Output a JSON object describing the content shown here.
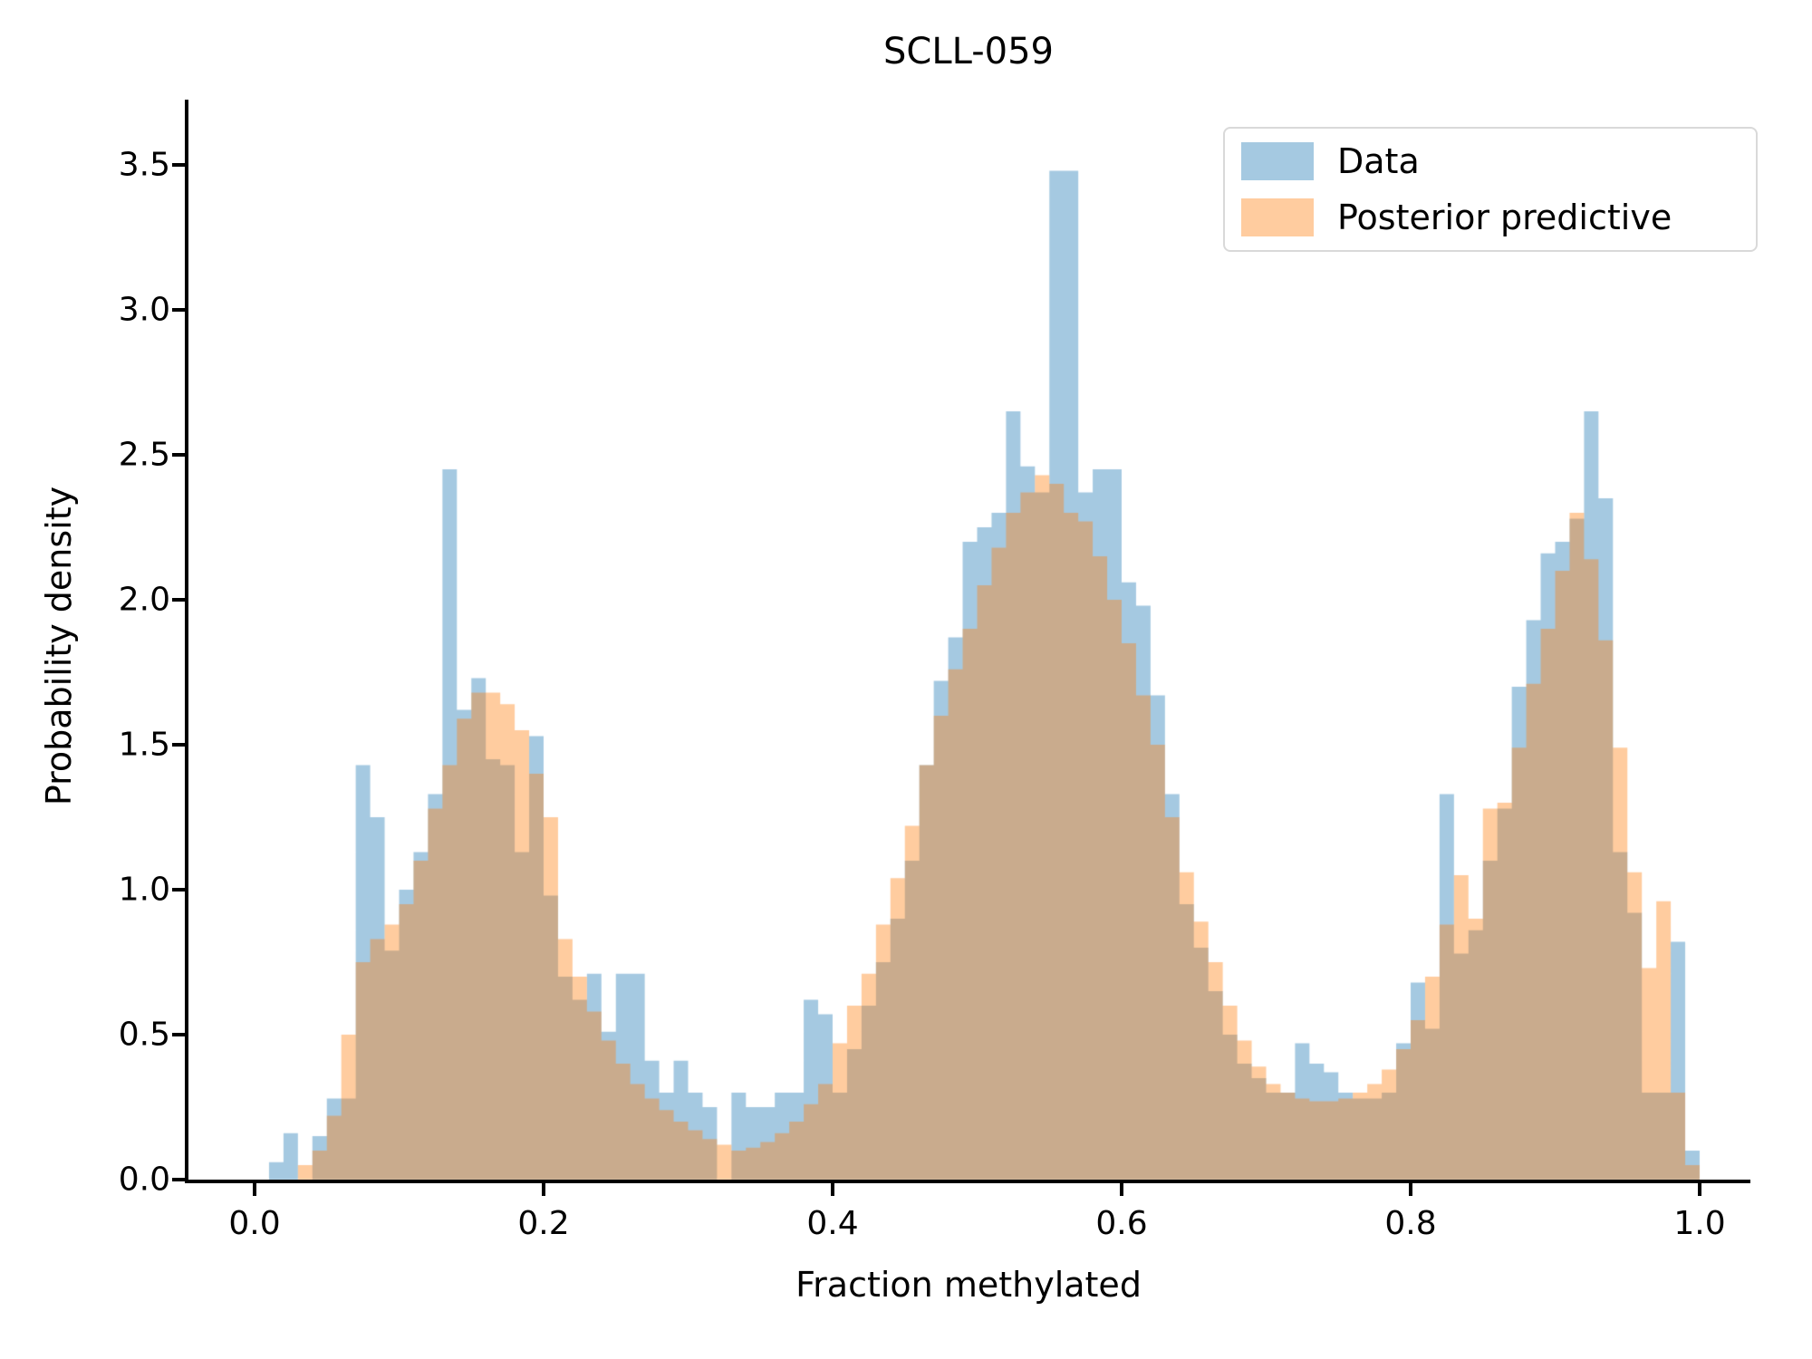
{
  "figure": {
    "title": "SCLL-059",
    "xlabel": "Fraction methylated",
    "ylabel": "Probability density"
  },
  "legend": {
    "position": "upper right",
    "items": [
      {
        "label": "Data",
        "swatch_color": "#a5c9e1"
      },
      {
        "label": "Posterior predictive",
        "swatch_color": "#ffcc9f"
      }
    ]
  },
  "chart_data": {
    "type": "bar",
    "subtype": "overlapping-histograms",
    "title": "SCLL-059",
    "xlabel": "Fraction methylated",
    "ylabel": "Probability density",
    "grid": false,
    "legend_position": "upper right",
    "xlim": [
      -0.046,
      1.034
    ],
    "ylim": [
      0,
      3.72
    ],
    "xticks": [
      {
        "v": 0.0,
        "label": "0.0"
      },
      {
        "v": 0.2,
        "label": "0.2"
      },
      {
        "v": 0.4,
        "label": "0.4"
      },
      {
        "v": 0.6,
        "label": "0.6"
      },
      {
        "v": 0.8,
        "label": "0.8"
      },
      {
        "v": 1.0,
        "label": "1.0"
      }
    ],
    "yticks": [
      {
        "v": 0.0,
        "label": "0.0"
      },
      {
        "v": 0.5,
        "label": "0.5"
      },
      {
        "v": 1.0,
        "label": "1.0"
      },
      {
        "v": 1.5,
        "label": "1.5"
      },
      {
        "v": 2.0,
        "label": "2.0"
      },
      {
        "v": 2.5,
        "label": "2.5"
      },
      {
        "v": 3.0,
        "label": "3.0"
      },
      {
        "v": 3.5,
        "label": "3.5"
      }
    ],
    "bins": {
      "start": 0.0,
      "width": 0.01,
      "count": 100
    },
    "series": [
      {
        "name": "Data",
        "color": "#1f77b4",
        "alpha": 0.4,
        "values": [
          0,
          0.06,
          0.16,
          0,
          0.15,
          0.28,
          0.28,
          1.43,
          1.25,
          0.79,
          1.0,
          1.13,
          1.33,
          2.45,
          1.62,
          1.73,
          1.45,
          1.43,
          1.13,
          1.53,
          0.98,
          0.7,
          0.62,
          0.71,
          0.51,
          0.71,
          0.71,
          0.41,
          0.3,
          0.41,
          0.3,
          0.25,
          0.0,
          0.3,
          0.25,
          0.25,
          0.3,
          0.3,
          0.62,
          0.57,
          0.3,
          0.45,
          0.6,
          0.75,
          0.9,
          1.1,
          1.43,
          1.72,
          1.87,
          2.2,
          2.25,
          2.3,
          2.65,
          2.46,
          2.37,
          3.48,
          3.48,
          2.37,
          2.45,
          2.45,
          2.06,
          1.98,
          1.67,
          1.33,
          0.95,
          0.8,
          0.65,
          0.5,
          0.4,
          0.35,
          0.3,
          0.3,
          0.47,
          0.4,
          0.37,
          0.3,
          0.28,
          0.28,
          0.3,
          0.47,
          0.68,
          0.52,
          1.33,
          0.78,
          0.86,
          1.1,
          1.28,
          1.7,
          1.93,
          2.16,
          2.2,
          2.28,
          2.65,
          2.35,
          1.13,
          0.92,
          0.3,
          0.3,
          0.82,
          0.1
        ]
      },
      {
        "name": "Posterior predictive",
        "color": "#ff7f0e",
        "alpha": 0.4,
        "values": [
          0,
          0,
          0,
          0.05,
          0.1,
          0.22,
          0.5,
          0.75,
          0.83,
          0.88,
          0.95,
          1.1,
          1.28,
          1.43,
          1.59,
          1.68,
          1.68,
          1.64,
          1.55,
          1.4,
          1.25,
          0.83,
          0.7,
          0.58,
          0.48,
          0.4,
          0.33,
          0.28,
          0.24,
          0.2,
          0.17,
          0.14,
          0.12,
          0.1,
          0.11,
          0.13,
          0.16,
          0.2,
          0.26,
          0.33,
          0.47,
          0.6,
          0.71,
          0.88,
          1.04,
          1.22,
          1.43,
          1.6,
          1.76,
          1.9,
          2.05,
          2.18,
          2.3,
          2.37,
          2.43,
          2.4,
          2.3,
          2.27,
          2.15,
          2.0,
          1.85,
          1.67,
          1.5,
          1.25,
          1.06,
          0.89,
          0.75,
          0.6,
          0.48,
          0.39,
          0.33,
          0.3,
          0.28,
          0.27,
          0.27,
          0.28,
          0.3,
          0.33,
          0.38,
          0.45,
          0.55,
          0.7,
          0.88,
          1.05,
          0.9,
          1.28,
          1.3,
          1.49,
          1.71,
          1.9,
          2.1,
          2.3,
          2.14,
          1.86,
          1.49,
          1.06,
          0.73,
          0.96,
          0.3,
          0.05
        ]
      }
    ]
  }
}
